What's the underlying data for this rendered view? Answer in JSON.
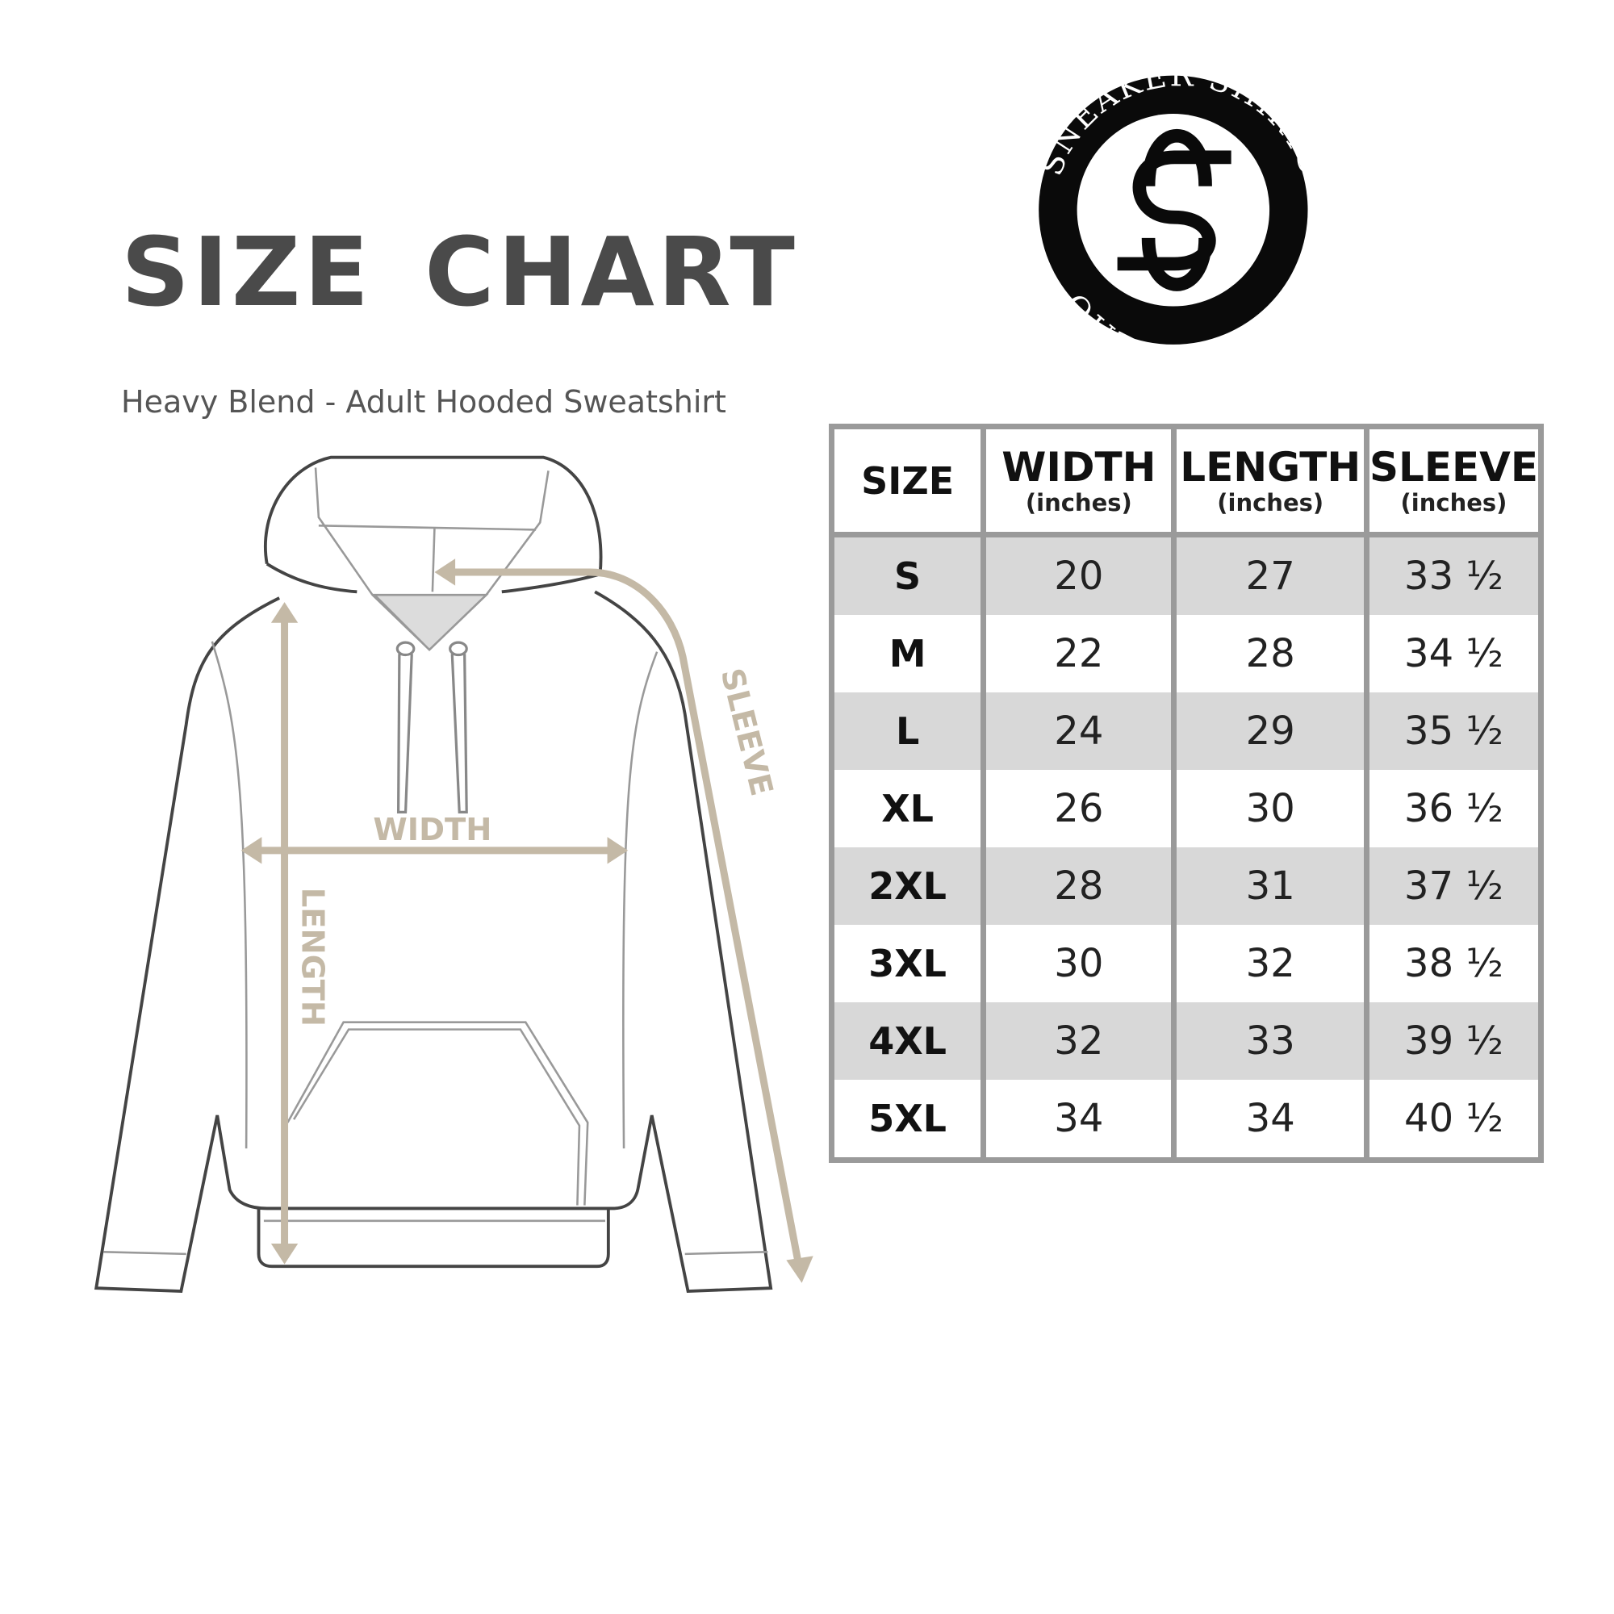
{
  "header": {
    "title": "SIZE CHART",
    "subtitle": "Heavy Blend - Adult Hooded Sweatshirt"
  },
  "logo": {
    "top_text": "SNEAKER SHIRTS",
    "bottom_text": "OUTLET.COM",
    "monogram": "SS"
  },
  "diagram": {
    "width_label": "WIDTH",
    "length_label": "LENGTH",
    "sleeve_label": "SLEEVE",
    "arrow_color": "#c4b9a6"
  },
  "table": {
    "headers": [
      {
        "label": "SIZE",
        "unit": ""
      },
      {
        "label": "WIDTH",
        "unit": "(inches)"
      },
      {
        "label": "LENGTH",
        "unit": "(inches)"
      },
      {
        "label": "SLEEVE",
        "unit": "(inches)"
      }
    ],
    "rows": [
      [
        "S",
        "20",
        "27",
        "33 ½"
      ],
      [
        "M",
        "22",
        "28",
        "34 ½"
      ],
      [
        "L",
        "24",
        "29",
        "35 ½"
      ],
      [
        "XL",
        "26",
        "30",
        "36 ½"
      ],
      [
        "2XL",
        "28",
        "31",
        "37 ½"
      ],
      [
        "3XL",
        "30",
        "32",
        "38 ½"
      ],
      [
        "4XL",
        "32",
        "33",
        "39 ½"
      ],
      [
        "5XL",
        "34",
        "34",
        "40 ½"
      ]
    ],
    "band_color": "#d8d8d8",
    "border_color": "#9a9a9a"
  }
}
